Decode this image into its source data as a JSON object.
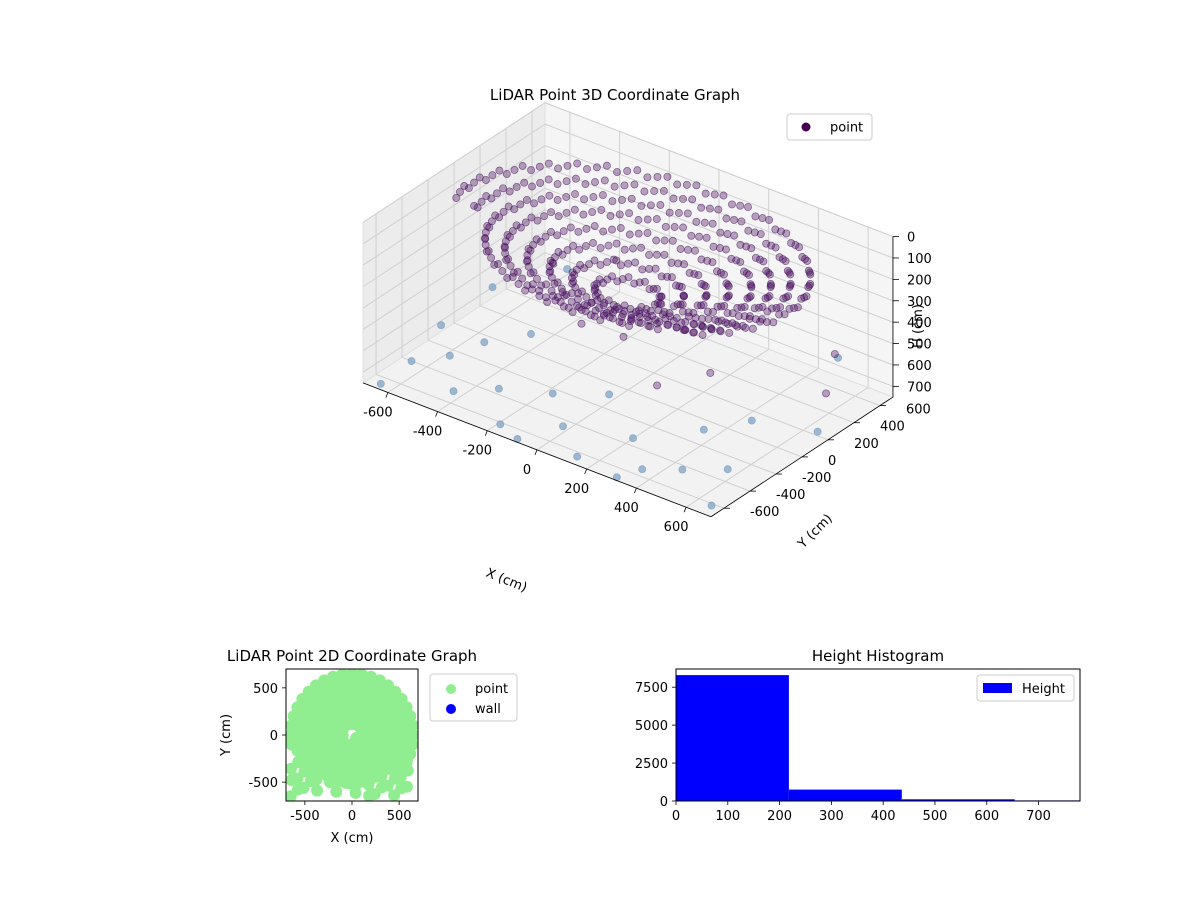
{
  "chart_data": [
    {
      "type": "scatter",
      "projection": "3d",
      "title": "LiDAR Point 3D Coordinate Graph",
      "xlabel": "X (cm)",
      "ylabel": "Y (cm)",
      "zlabel": "H (cm)",
      "xlim": [
        -700,
        700
      ],
      "ylim": [
        -700,
        700
      ],
      "zlim": [
        750,
        0
      ],
      "zaxis_inverted": true,
      "xticks": [
        -600,
        -400,
        -200,
        0,
        200,
        400,
        600
      ],
      "yticks": [
        -600,
        -400,
        -200,
        0,
        200,
        400,
        600
      ],
      "zticks": [
        0,
        100,
        200,
        300,
        400,
        500,
        600,
        700
      ],
      "grid": true,
      "legend": {
        "placement": "upper-right",
        "entries": [
          {
            "label": "point",
            "color": "#440154"
          }
        ]
      },
      "series": [
        {
          "name": "point",
          "color": "#440154",
          "description_shape": "dome",
          "dome_rings": [
            {
              "radius": 650,
              "h": 80
            },
            {
              "radius": 580,
              "h": 110
            },
            {
              "radius": 510,
              "h": 140
            },
            {
              "radius": 440,
              "h": 170
            },
            {
              "radius": 360,
              "h": 200
            },
            {
              "radius": 280,
              "h": 230
            },
            {
              "radius": 200,
              "h": 260
            },
            {
              "radius": 120,
              "h": 290
            }
          ],
          "scattered_points": [
            [
              -620,
              -480,
              700
            ],
            [
              -560,
              -300,
              720
            ],
            [
              -500,
              -150,
              690
            ],
            [
              -430,
              -520,
              740
            ],
            [
              -380,
              -20,
              650
            ],
            [
              -300,
              -420,
              710
            ],
            [
              -250,
              120,
              600
            ],
            [
              -200,
              -600,
              760
            ],
            [
              -120,
              -350,
              680
            ],
            [
              -60,
              80,
              560
            ],
            [
              0,
              -500,
              720
            ],
            [
              60,
              -260,
              640
            ],
            [
              120,
              -620,
              760
            ],
            [
              180,
              -120,
              600
            ],
            [
              240,
              -420,
              700
            ],
            [
              300,
              60,
              560
            ],
            [
              350,
              -560,
              740
            ],
            [
              420,
              -220,
              660
            ],
            [
              470,
              -480,
              720
            ],
            [
              540,
              -80,
              620
            ],
            [
              600,
              -380,
              700
            ],
            [
              650,
              -600,
              760
            ],
            [
              -650,
              200,
              640
            ],
            [
              -520,
              420,
              560
            ],
            [
              -420,
              300,
              600
            ],
            [
              -340,
              560,
              520
            ],
            [
              640,
              300,
              600
            ],
            [
              560,
              520,
              540
            ],
            [
              680,
              620,
              720
            ],
            [
              700,
              120,
              680
            ],
            [
              -660,
              -640,
              760
            ],
            [
              -700,
              -100,
              720
            ],
            [
              -580,
              640,
              700
            ],
            [
              500,
              660,
              640
            ],
            [
              -100,
              -660,
              760
            ],
            [
              300,
              -660,
              760
            ]
          ]
        }
      ]
    },
    {
      "type": "scatter",
      "title": "LiDAR Point 2D Coordinate Graph",
      "xlabel": "X (cm)",
      "ylabel": "Y (cm)",
      "xlim": [
        -700,
        700
      ],
      "ylim": [
        -700,
        700
      ],
      "xticks": [
        -500,
        0,
        500
      ],
      "yticks": [
        -500,
        0,
        500
      ],
      "legend": {
        "placement": "outside-right",
        "entries": [
          {
            "label": "point",
            "color": "#90ee90"
          },
          {
            "label": "wall",
            "color": "#0000ff"
          }
        ]
      },
      "series": [
        {
          "name": "point",
          "color": "#90ee90"
        },
        {
          "name": "wall",
          "color": "#0000ff"
        }
      ]
    },
    {
      "type": "histogram",
      "title": "Height Histogram",
      "xlabel": "",
      "ylabel": "",
      "xlim": [
        0,
        780
      ],
      "ylim": [
        0,
        8700
      ],
      "xticks": [
        0,
        100,
        200,
        300,
        400,
        500,
        600,
        700
      ],
      "yticks": [
        0,
        2500,
        5000,
        7500
      ],
      "legend": {
        "placement": "upper-right",
        "entries": [
          {
            "label": "Height",
            "color": "#0000ff"
          }
        ]
      },
      "series": [
        {
          "name": "Height",
          "color": "#0000ff",
          "bins": [
            {
              "start": 0,
              "end": 218,
              "count": 8300
            },
            {
              "start": 218,
              "end": 436,
              "count": 750
            },
            {
              "start": 436,
              "end": 654,
              "count": 110
            },
            {
              "start": 654,
              "end": 780,
              "count": 40
            }
          ]
        }
      ]
    }
  ]
}
